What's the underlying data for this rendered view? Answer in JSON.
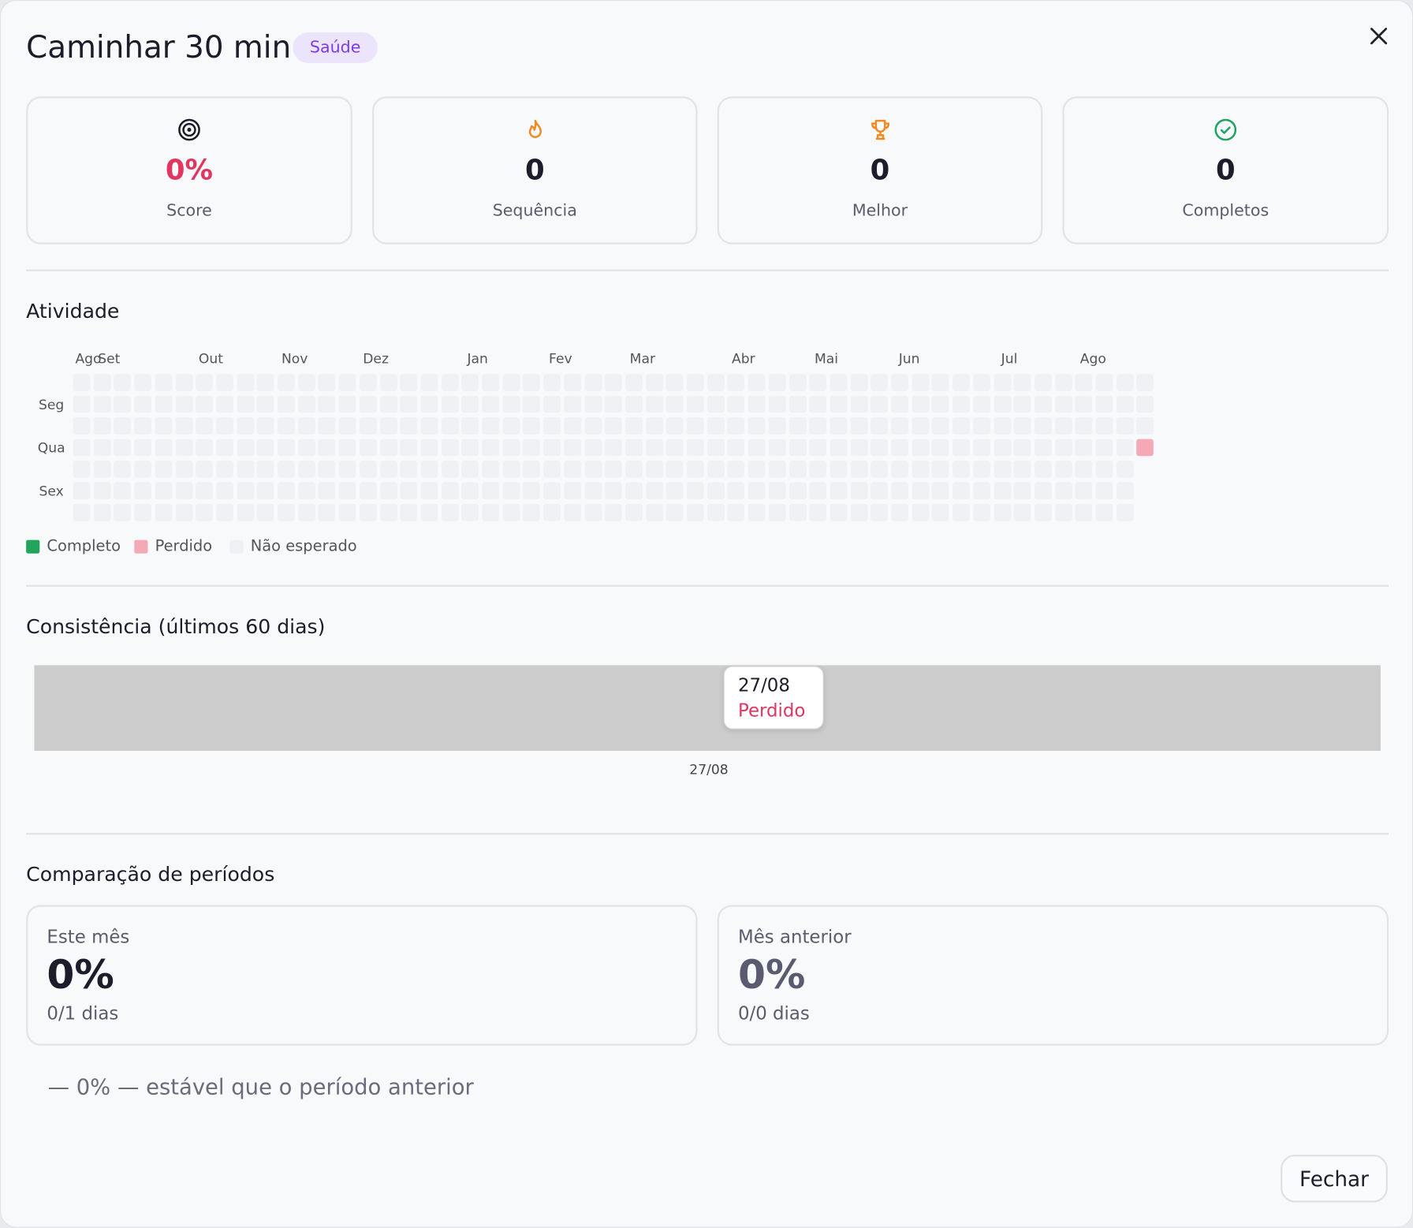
{
  "header": {
    "title": "Caminhar 30 min",
    "badge": "Saúde"
  },
  "stats": [
    {
      "value": "0%",
      "label": "Score"
    },
    {
      "value": "0",
      "label": "Sequência"
    },
    {
      "value": "0",
      "label": "Melhor"
    },
    {
      "value": "0",
      "label": "Completos"
    }
  ],
  "activity": {
    "title": "Atividade",
    "months": [
      "Ago",
      "Set",
      "Out",
      "Nov",
      "Dez",
      "Jan",
      "Fev",
      "Mar",
      "Abr",
      "Mai",
      "Jun",
      "Jul",
      "Ago"
    ],
    "days": [
      "Seg",
      "Qua",
      "Sex"
    ],
    "legend": [
      "Completo",
      "Perdido",
      "Não esperado"
    ]
  },
  "consistency": {
    "title": "Consistência (últimos 60 dias)",
    "tooltip": {
      "date": "27/08",
      "status": "Perdido"
    },
    "x_label": "27/08"
  },
  "comparison": {
    "title": "Comparação de períodos",
    "periods": [
      {
        "label": "Este mês",
        "value": "0%",
        "detail": "0/1 dias"
      },
      {
        "label": "Mês anterior",
        "value": "0%",
        "detail": "0/0 dias"
      }
    ],
    "summary": "— 0% — estável que o período anterior"
  },
  "footer": {
    "button": "Fechar"
  }
}
